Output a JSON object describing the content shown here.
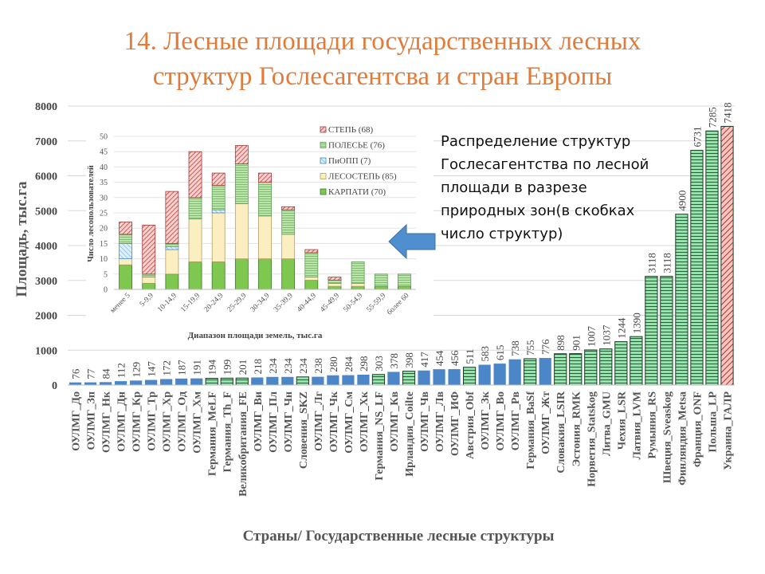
{
  "title": {
    "line1": "14. Лесные площади государственных лесных",
    "line2": "структур Гослесагентсва и стран Европы"
  },
  "callout": {
    "lines": [
      "Распределение структур",
      "Гослесагентства по лесной",
      "площади в разрезе",
      "природных зон(в скобках",
      "число структур)"
    ]
  },
  "colors": {
    "blue": "#4a86c8",
    "green": "#8ee6a8",
    "red": "#f2b0aa",
    "title": "#e07b39"
  },
  "chart_data": [
    {
      "type": "bar",
      "title": "",
      "xlabel": "Страны/ Государственные лесные структуры",
      "ylabel": "Площадь, тыс.га",
      "ylim": [
        0,
        8000
      ],
      "yticks": [
        "0",
        "1000",
        "2000",
        "3000",
        "4000",
        "5000",
        "6000",
        "7000",
        "8000"
      ],
      "grid": true,
      "categories": [
        "ОУЛМГ_До",
        "ОУЛМГ_Зп",
        "ОУЛМГ_Нк",
        "ОУЛМГ_Дн",
        "ОУЛМГ_Кр",
        "ОУЛМГ_Тр",
        "ОУЛМГ_Хр",
        "ОУЛМГ_Од",
        "ОУЛМГ_Хм",
        "Германия_MeLF",
        "Германия_Th_F",
        "Великобритания_FE",
        "ОУЛМГ_Ви",
        "ОУЛМГ_Пл",
        "ОУЛМГ_Чн",
        "Словения_SKZ",
        "ОУЛМГ_Лг",
        "ОУЛМГ_Чк",
        "ОУЛМГ_См",
        "ОУЛМГ_Хк",
        "Германия_NS_LF",
        "ОУЛМГ_Кв",
        "Ирландия_Coilte",
        "ОУЛМГ_Чв",
        "ОУЛМГ_Лв",
        "ОУЛМГ_ИФ",
        "Австрия_Obf",
        "ОУЛМГ_Зк",
        "ОУЛМГ_Во",
        "ОУЛМГ_Рв",
        "Германия_BaSf",
        "ОУЛМГ_Жт",
        "Словакия_LSIR",
        "Эстония_RMK",
        "Норвегия_Statskog",
        "Литва_GMU",
        "Чехия_LSR",
        "Латвия_LVM",
        "Румыния_RS",
        "Швеция_Sveaskog",
        "Финляндия_Metsa",
        "Франция_ONF",
        "Польша_LP",
        "Украина_ГАЛР"
      ],
      "values": [
        76,
        77,
        84,
        112,
        129,
        147,
        172,
        187,
        191,
        194,
        199,
        201,
        218,
        234,
        234,
        234,
        238,
        280,
        284,
        298,
        303,
        378,
        398,
        417,
        454,
        456,
        511,
        583,
        615,
        738,
        755,
        776,
        898,
        901,
        1007,
        1037,
        1244,
        1390,
        3118,
        3118,
        4900,
        6731,
        7285,
        7418
      ],
      "value_labels": [
        "76",
        "77",
        "84",
        "112",
        "129",
        "147",
        "172",
        "187",
        "191",
        "194",
        "199",
        "201",
        "218",
        "234",
        "234",
        "234",
        "238",
        "280",
        "284",
        "298",
        "303",
        "378",
        "398",
        "417",
        "454",
        "456",
        "511",
        "583",
        "615",
        "738",
        "755",
        "776",
        "898",
        "901",
        "1007",
        "1037",
        "1244",
        "1390",
        "3118",
        "3118",
        "4900",
        "6731",
        "7285",
        "7418"
      ],
      "kinds": [
        "blue",
        "blue",
        "blue",
        "blue",
        "blue",
        "blue",
        "blue",
        "blue",
        "blue",
        "green",
        "green",
        "green",
        "blue",
        "blue",
        "blue",
        "green",
        "blue",
        "blue",
        "blue",
        "blue",
        "green",
        "blue",
        "green",
        "blue",
        "blue",
        "blue",
        "green",
        "blue",
        "blue",
        "blue",
        "green",
        "blue",
        "green",
        "green",
        "green",
        "green",
        "green",
        "green",
        "green",
        "green",
        "green",
        "green",
        "green",
        "red"
      ]
    },
    {
      "type": "bar",
      "stacked": true,
      "xlabel": "Диапазон площади земель, тыс.га",
      "ylabel": "Число лесопользователей",
      "ylim": [
        0,
        50
      ],
      "yticks": [
        "0",
        "5",
        "10",
        "15",
        "20",
        "25",
        "30",
        "35",
        "40",
        "45",
        "50"
      ],
      "legend": "top-right",
      "categories": [
        "менее 5",
        "5-9,9",
        "10-14,9",
        "15-19,9",
        "20-24,9",
        "25-29,9",
        "30-34,9",
        "35-39,9",
        "40-44,9",
        "45-49,9",
        "50-54,9",
        "55-59,9",
        "более 60"
      ],
      "series": [
        {
          "name": "КАРПАТИ (70)",
          "kind": "karpaty",
          "values": [
            8,
            2,
            5,
            9,
            9,
            10,
            10,
            10,
            3,
            1,
            1,
            1,
            1
          ]
        },
        {
          "name": "ЛЕСОСТЕПЬ (85)",
          "kind": "lesostep",
          "values": [
            2,
            2,
            8,
            14,
            16,
            18,
            14,
            8,
            1,
            1,
            1,
            0,
            0
          ]
        },
        {
          "name": "ПиОПП (7)",
          "kind": "piopp",
          "values": [
            5,
            0,
            1,
            0,
            1,
            0,
            0,
            0,
            0,
            0,
            0,
            0,
            0
          ]
        },
        {
          "name": "ПОЛЕСЬЕ (76)",
          "kind": "polesye",
          "values": [
            3,
            1,
            1,
            7,
            8,
            13,
            11,
            8,
            8,
            1,
            7,
            4,
            4
          ]
        },
        {
          "name": "СТЕПЬ (68)",
          "kind": "step",
          "values": [
            4,
            16,
            17,
            15,
            4,
            6,
            3,
            1,
            1,
            1,
            0,
            0,
            0
          ]
        }
      ]
    }
  ]
}
